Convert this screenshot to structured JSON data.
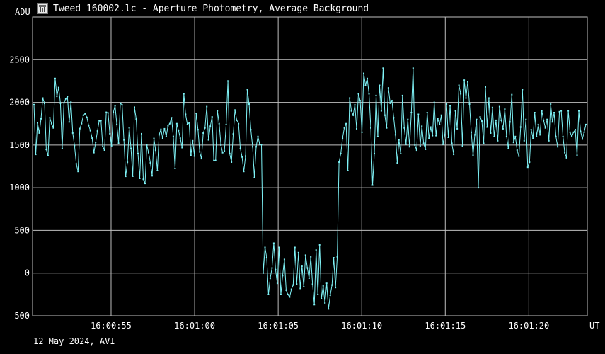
{
  "window": {
    "title": "Tweed 160002.lc - Aperture Photometry, Average Background",
    "icon": "telescope-app-icon"
  },
  "footer": {
    "date_label": "12 May 2024, AVI"
  },
  "colors": {
    "background": "#000000",
    "grid": "#bfbfbf",
    "series": "#7ff3f7",
    "text": "#ffffff"
  },
  "chart_data": {
    "type": "line",
    "title": "",
    "xlabel": "UT",
    "ylabel": "ADU",
    "xlim": [
      "16:00:50.3",
      "16:01:23.5"
    ],
    "ylim": [
      -500,
      3000
    ],
    "grid": true,
    "x_ticks": [
      "16:00:55",
      "16:01:00",
      "16:01:05",
      "16:01:10",
      "16:01:15",
      "16:01:20"
    ],
    "y_ticks": [
      -500,
      0,
      500,
      1000,
      1500,
      2000,
      2500
    ],
    "series": [
      {
        "name": "",
        "marker": "dot",
        "values": [
          1973,
          1390,
          1760,
          1641,
          1808,
          2050,
          1988,
          1448,
          1377,
          1820,
          1750,
          1700,
          2280,
          2070,
          2174,
          1990,
          1459,
          1994,
          2041,
          2069,
          1770,
          2003,
          1641,
          1494,
          1280,
          1190,
          1692,
          1751,
          1848,
          1868,
          1824,
          1730,
          1670,
          1581,
          1411,
          1532,
          1664,
          1784,
          1786,
          1484,
          1441,
          1884,
          1876,
          1633,
          1491,
          1880,
          1962,
          1741,
          1521,
          1991,
          1970,
          1560,
          1133,
          1299,
          1702,
          1460,
          1135,
          1943,
          1804,
          1400,
          1109,
          1632,
          1099,
          1050,
          1500,
          1411,
          1292,
          1140,
          1577,
          1440,
          1201,
          1620,
          1684,
          1580,
          1690,
          1600,
          1725,
          1750,
          1820,
          1600,
          1225,
          1750,
          1670,
          1580,
          1470,
          2100,
          1860,
          1740,
          1760,
          1380,
          1550,
          1370,
          1870,
          1680,
          1420,
          1340,
          1640,
          1700,
          1950,
          1560,
          1720,
          1830,
          1320,
          1320,
          1900,
          1750,
          1500,
          1410,
          1430,
          1740,
          2250,
          1400,
          1300,
          1630,
          1910,
          1790,
          1750,
          1460,
          1360,
          1190,
          1370,
          2150,
          1980,
          1680,
          1480,
          1120,
          1480,
          1600,
          1510,
          1506,
          0,
          300,
          180,
          -250,
          -60,
          60,
          350,
          40,
          -120,
          300,
          -250,
          -30,
          160,
          -200,
          -250,
          -280,
          -190,
          -140,
          300,
          -130,
          240,
          -180,
          80,
          -160,
          210,
          60,
          -60,
          190,
          -130,
          -370,
          270,
          -250,
          330,
          -300,
          -150,
          -350,
          -120,
          -420,
          -260,
          -140,
          180,
          -170,
          190,
          1300,
          1400,
          1580,
          1700,
          1750,
          1200,
          2050,
          1900,
          1850,
          1970,
          1690,
          2100,
          2020,
          1650,
          2340,
          2200,
          2280,
          2100,
          1700,
          1030,
          1400,
          2080,
          1600,
          2200,
          1900,
          2400,
          1850,
          1700,
          2170,
          1990,
          2020,
          1820,
          1620,
          1290,
          1560,
          1400,
          2080,
          1700,
          1510,
          1800,
          1480,
          1880,
          2400,
          1500,
          1440,
          1860,
          1490,
          1720,
          1520,
          1450,
          1880,
          1580,
          1710,
          1610,
          2000,
          1610,
          1810,
          1740,
          1850,
          1510,
          1620,
          1980,
          1590,
          1960,
          1520,
          1390,
          1900,
          1690,
          2200,
          2100,
          1490,
          2260,
          2050,
          2240,
          1980,
          1650,
          1380,
          1620,
          1800,
          1000,
          1830,
          1780,
          1520,
          2180,
          1710,
          2050,
          1640,
          1940,
          1600,
          1790,
          1550,
          1950,
          1790,
          1690,
          1920,
          1600,
          1460,
          1770,
          2090,
          1530,
          1600,
          1440,
          1370,
          1710,
          2150,
          1550,
          1800,
          1240,
          1300,
          1680,
          1580,
          1880,
          1600,
          1740,
          1620,
          1900,
          1790,
          1700,
          1800,
          1550,
          1980,
          1770,
          1880,
          1600,
          1480,
          1890,
          1900,
          1600,
          1410,
          1350,
          1900,
          1650,
          1600,
          1650,
          1680,
          1380,
          1900,
          1660,
          1570,
          1650,
          1740
        ]
      }
    ]
  }
}
